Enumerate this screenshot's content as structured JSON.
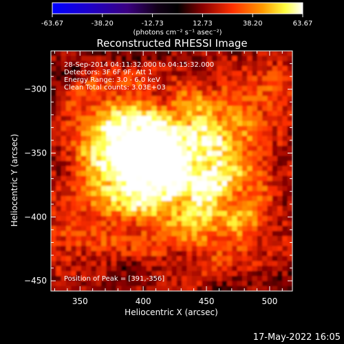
{
  "colorbar": {
    "ticks": [
      "-63.67",
      "-38.20",
      "-12.73",
      "12.73",
      "38.20",
      "63.67"
    ],
    "unit_label": "(photons cm⁻² s⁻¹ asec⁻²)",
    "range": [
      -63.67,
      63.67
    ]
  },
  "chart_data": {
    "type": "heatmap",
    "title": "Reconstructed RHESSI Image",
    "xlabel": "Heliocentric X (arcsec)",
    "ylabel": "Heliocentric Y (arcsec)",
    "xlim": [
      327,
      518
    ],
    "ylim": [
      -458,
      -270
    ],
    "xticks": [
      350,
      400,
      450,
      500
    ],
    "yticks": [
      -300,
      -350,
      -400,
      -450
    ],
    "annotations": [
      "28-Sep-2014 04:11:32.000 to 04:15:32.000",
      "Detectors: 3F 6F 9F, Att 1",
      "Energy Range: 3.0 - 6.0 keV",
      "Clean     Total counts: 3.03E+03"
    ],
    "peak_text": "Position of Peak = [391,-356]",
    "peak": [
      391,
      -356
    ],
    "peak_value": 63.67,
    "colormap": "RHESSI heat (blue → black → red → yellow → white)"
  },
  "footer": {
    "timestamp": "17-May-2022 16:05"
  }
}
